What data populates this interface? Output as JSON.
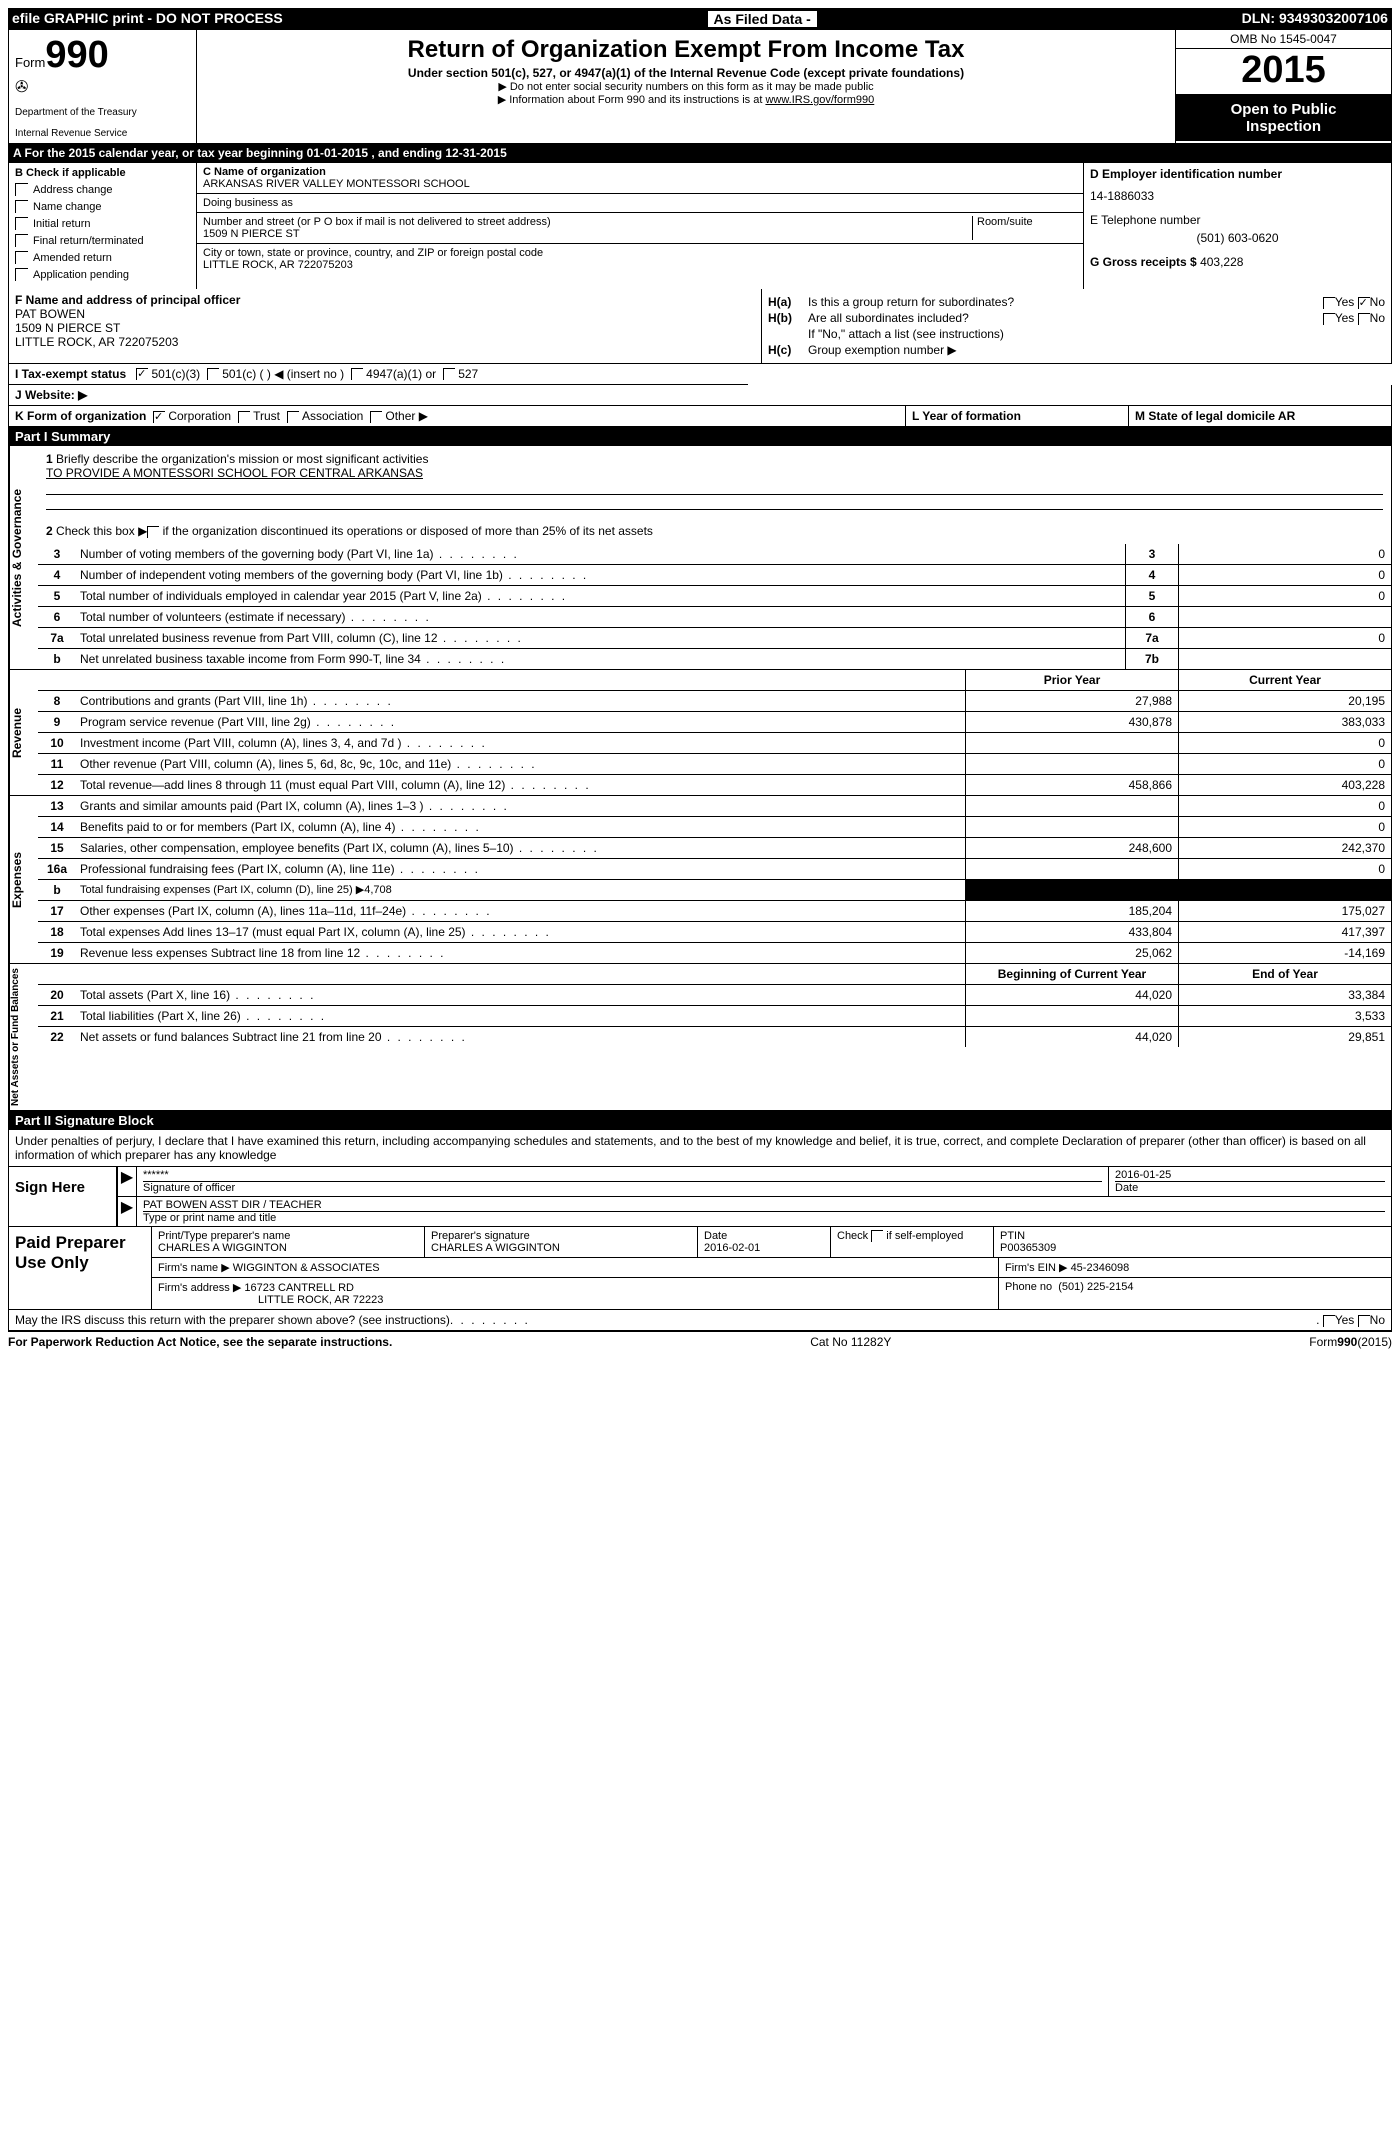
{
  "topbar": {
    "left": "efile GRAPHIC print - DO NOT PROCESS",
    "mid": "As Filed Data -",
    "right": "DLN: 93493032007106"
  },
  "header": {
    "form_word": "Form",
    "form_num": "990",
    "dept1": "Department of the Treasury",
    "dept2": "Internal Revenue Service",
    "title": "Return of Organization Exempt From Income Tax",
    "sub": "Under section 501(c), 527, or 4947(a)(1) of the Internal Revenue Code (except private foundations)",
    "note1": "▶ Do not enter social security numbers on this form as it may be made public",
    "note2": "▶ Information about Form 990 and its instructions is at ",
    "note2_link": "www.IRS.gov/form990",
    "omb": "OMB No 1545-0047",
    "year": "2015",
    "open1": "Open to Public",
    "open2": "Inspection"
  },
  "row_a": "A   For the 2015 calendar year, or tax year beginning 01-01-2015    , and ending 12-31-2015",
  "col_b": {
    "label": "B  Check if applicable",
    "items": [
      "Address change",
      "Name change",
      "Initial return",
      "Final return/terminated",
      "Amended return",
      "Application pending"
    ]
  },
  "col_c": {
    "name_label": "C Name of organization",
    "name": "ARKANSAS RIVER VALLEY MONTESSORI SCHOOL",
    "dba_label": "Doing business as",
    "street_label": "Number and street (or P O  box if mail is not delivered to street address)",
    "room_label": "Room/suite",
    "street": "1509 N PIERCE ST",
    "city_label": "City or town, state or province, country, and ZIP or foreign postal code",
    "city": "LITTLE ROCK, AR  722075203"
  },
  "col_d": {
    "d_label": "D Employer identification number",
    "ein": "14-1886033",
    "e_label": "E Telephone number",
    "phone": "(501) 603-0620",
    "g_label": "G Gross receipts $",
    "gross": "403,228"
  },
  "f": {
    "label": "F   Name and address of principal officer",
    "name": "PAT BOWEN",
    "addr1": "1509 N PIERCE ST",
    "addr2": "LITTLE ROCK, AR  722075203"
  },
  "h": {
    "ha_label": "H(a)",
    "ha_q": "Is this a group return for subordinates?",
    "hb_label": "H(b)",
    "hb_q": "Are all subordinates included?",
    "hb_note": "If \"No,\" attach a list (see instructions)",
    "hc_label": "H(c)",
    "hc_q": "Group exemption number ▶",
    "yes": "Yes",
    "no": "No"
  },
  "row_i": {
    "label": "I   Tax-exempt status",
    "opt1": "501(c)(3)",
    "opt2": "501(c) (  ) ◀ (insert no )",
    "opt3": "4947(a)(1) or",
    "opt4": "527"
  },
  "row_j": {
    "label": "J   Website: ▶"
  },
  "row_k": {
    "k": "K Form of organization",
    "corp": "Corporation",
    "trust": "Trust",
    "assoc": "Association",
    "other": "Other ▶",
    "l": "L Year of formation",
    "m": "M State of legal domicile  AR"
  },
  "part1": {
    "header": "Part I      Summary",
    "vtab_gov": "Activities & Governance",
    "vtab_rev": "Revenue",
    "vtab_exp": "Expenses",
    "vtab_net": "Net Assets or Fund Balances",
    "line1_label": "1",
    "line1": "Briefly describe the organization's mission or most significant activities",
    "mission": "TO PROVIDE A MONTESSORI SCHOOL FOR CENTRAL ARKANSAS",
    "line2_label": "2",
    "line2": "Check this box ▶     if the organization discontinued its operations or disposed of more than 25% of its net assets",
    "rows_gov": [
      {
        "n": "3",
        "d": "Number of voting members of the governing body (Part VI, line 1a)",
        "box": "3",
        "v": "0"
      },
      {
        "n": "4",
        "d": "Number of independent voting members of the governing body (Part VI, line 1b)",
        "box": "4",
        "v": "0"
      },
      {
        "n": "5",
        "d": "Total number of individuals employed in calendar year 2015 (Part V, line 2a)",
        "box": "5",
        "v": "0"
      },
      {
        "n": "6",
        "d": "Total number of volunteers (estimate if necessary)",
        "box": "6",
        "v": ""
      },
      {
        "n": "7a",
        "d": "Total unrelated business revenue from Part VIII, column (C), line 12",
        "box": "7a",
        "v": "0"
      },
      {
        "n": "b",
        "d": "Net unrelated business taxable income from Form 990-T, line 34",
        "box": "7b",
        "v": ""
      }
    ],
    "prior_year": "Prior Year",
    "current_year": "Current Year",
    "rows_rev": [
      {
        "n": "8",
        "d": "Contributions and grants (Part VIII, line 1h)",
        "p": "27,988",
        "c": "20,195"
      },
      {
        "n": "9",
        "d": "Program service revenue (Part VIII, line 2g)",
        "p": "430,878",
        "c": "383,033"
      },
      {
        "n": "10",
        "d": "Investment income (Part VIII, column (A), lines 3, 4, and 7d )",
        "p": "",
        "c": "0"
      },
      {
        "n": "11",
        "d": "Other revenue (Part VIII, column (A), lines 5, 6d, 8c, 9c, 10c, and 11e)",
        "p": "",
        "c": "0"
      },
      {
        "n": "12",
        "d": "Total revenue—add lines 8 through 11 (must equal Part VIII, column (A), line 12)",
        "p": "458,866",
        "c": "403,228"
      }
    ],
    "rows_exp": [
      {
        "n": "13",
        "d": "Grants and similar amounts paid (Part IX, column (A), lines 1–3 )",
        "p": "",
        "c": "0"
      },
      {
        "n": "14",
        "d": "Benefits paid to or for members (Part IX, column (A), line 4)",
        "p": "",
        "c": "0"
      },
      {
        "n": "15",
        "d": "Salaries, other compensation, employee benefits (Part IX, column (A), lines 5–10)",
        "p": "248,600",
        "c": "242,370"
      },
      {
        "n": "16a",
        "d": "Professional fundraising fees (Part IX, column (A), line 11e)",
        "p": "",
        "c": "0"
      },
      {
        "n": "b",
        "d": "Total fundraising expenses (Part IX, column (D), line 25) ▶4,708",
        "p": "BLACK",
        "c": "BLACK"
      },
      {
        "n": "17",
        "d": "Other expenses (Part IX, column (A), lines 11a–11d, 11f–24e)",
        "p": "185,204",
        "c": "175,027"
      },
      {
        "n": "18",
        "d": "Total expenses Add lines 13–17 (must equal Part IX, column (A), line 25)",
        "p": "433,804",
        "c": "417,397"
      },
      {
        "n": "19",
        "d": "Revenue less expenses Subtract line 18 from line 12",
        "p": "25,062",
        "c": "-14,169"
      }
    ],
    "beg_year": "Beginning of Current Year",
    "end_year": "End of Year",
    "rows_net": [
      {
        "n": "20",
        "d": "Total assets (Part X, line 16)",
        "p": "44,020",
        "c": "33,384"
      },
      {
        "n": "21",
        "d": "Total liabilities (Part X, line 26)",
        "p": "",
        "c": "3,533"
      },
      {
        "n": "22",
        "d": "Net assets or fund balances Subtract line 21 from line 20",
        "p": "44,020",
        "c": "29,851"
      }
    ]
  },
  "part2": {
    "header": "Part II     Signature Block",
    "decl": "Under penalties of perjury, I declare that I have examined this return, including accompanying schedules and statements, and to the best of my knowledge and belief, it is true, correct, and complete Declaration of preparer (other than officer) is based on all information of which preparer has any knowledge"
  },
  "sign": {
    "left": "Sign Here",
    "stars": "******",
    "sig_label": "Signature of officer",
    "date": "2016-01-25",
    "date_label": "Date",
    "name": "PAT BOWEN ASST DIR / TEACHER",
    "name_label": "Type or print name and title"
  },
  "prep": {
    "left": "Paid Preparer Use Only",
    "r1": {
      "name_label": "Print/Type preparer's name",
      "name": "CHARLES A WIGGINTON",
      "sig_label": "Preparer's signature",
      "sig": "CHARLES A WIGGINTON",
      "date_label": "Date",
      "date": "2016-02-01",
      "check_label": "Check       if self-employed",
      "ptin_label": "PTIN",
      "ptin": "P00365309"
    },
    "r2": {
      "firm_label": "Firm's name    ▶",
      "firm": "WIGGINTON & ASSOCIATES",
      "ein_label": "Firm's EIN ▶",
      "ein": "45-2346098"
    },
    "r3": {
      "addr_label": "Firm's address ▶",
      "addr1": "16723 CANTRELL RD",
      "addr2": "LITTLE ROCK, AR  72223",
      "phone_label": "Phone no",
      "phone": "(501) 225-2154"
    }
  },
  "discuss": "May the IRS discuss this return with the preparer shown above? (see instructions)",
  "footer": {
    "left": "For Paperwork Reduction Act Notice, see the separate instructions.",
    "mid": "Cat No 11282Y",
    "right": "Form990(2015)"
  }
}
